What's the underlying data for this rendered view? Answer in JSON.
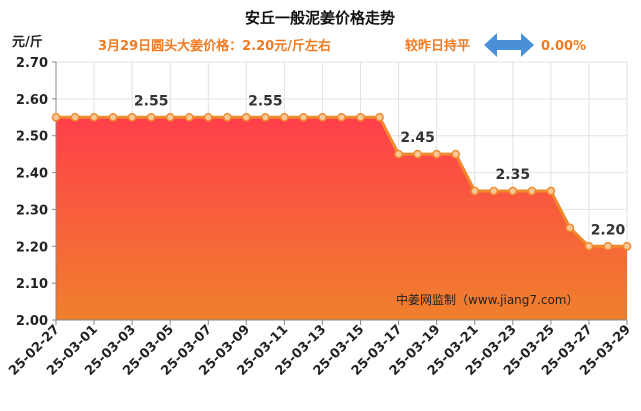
{
  "title": "安丘一般泥姜价格走势",
  "subtitle": {
    "price_text": "3月29日圆头大姜价格：2.20元/斤左右",
    "change_text": "较昨日持平",
    "change_pct": "0.00%",
    "colors": {
      "text": "#f07b22",
      "arrow": "#4a90d9"
    }
  },
  "unit_label": "元/斤",
  "watermark": "中姜网监制（www.jiang7.com）",
  "chart_data": {
    "type": "area",
    "title": "安丘一般泥姜价格走势",
    "ylabel": "元/斤",
    "ylim": [
      2.0,
      2.7
    ],
    "yticks": [
      "2.00",
      "2.10",
      "2.20",
      "2.30",
      "2.40",
      "2.50",
      "2.60",
      "2.70"
    ],
    "grid": true,
    "x": [
      "25-02-27",
      "25-02-28",
      "25-03-01",
      "25-03-02",
      "25-03-03",
      "25-03-04",
      "25-03-05",
      "25-03-06",
      "25-03-07",
      "25-03-08",
      "25-03-09",
      "25-03-10",
      "25-03-11",
      "25-03-12",
      "25-03-13",
      "25-03-14",
      "25-03-15",
      "25-03-16",
      "25-03-17",
      "25-03-18",
      "25-03-19",
      "25-03-20",
      "25-03-21",
      "25-03-22",
      "25-03-23",
      "25-03-24",
      "25-03-25",
      "25-03-26",
      "25-03-27",
      "25-03-28",
      "25-03-29"
    ],
    "xtick_labels": [
      "25-02-27",
      "25-03-01",
      "25-03-03",
      "25-03-05",
      "25-03-07",
      "25-03-09",
      "25-03-11",
      "25-03-13",
      "25-03-15",
      "25-03-17",
      "25-03-19",
      "25-03-21",
      "25-03-23",
      "25-03-25",
      "25-03-27",
      "25-03-29"
    ],
    "values": [
      2.55,
      2.55,
      2.55,
      2.55,
      2.55,
      2.55,
      2.55,
      2.55,
      2.55,
      2.55,
      2.55,
      2.55,
      2.55,
      2.55,
      2.55,
      2.55,
      2.55,
      2.55,
      2.45,
      2.45,
      2.45,
      2.45,
      2.35,
      2.35,
      2.35,
      2.35,
      2.35,
      2.25,
      2.2,
      2.2,
      2.2
    ],
    "data_labels": [
      {
        "index": 5,
        "text": "2.55"
      },
      {
        "index": 11,
        "text": "2.55"
      },
      {
        "index": 19,
        "text": "2.45"
      },
      {
        "index": 24,
        "text": "2.35"
      },
      {
        "index": 29,
        "text": "2.20"
      }
    ],
    "colors": {
      "line": "#f08a2c",
      "marker_fill": "#f6c99a",
      "fill_top": "#ff3f4a",
      "fill_bottom": "#f0802c"
    }
  }
}
